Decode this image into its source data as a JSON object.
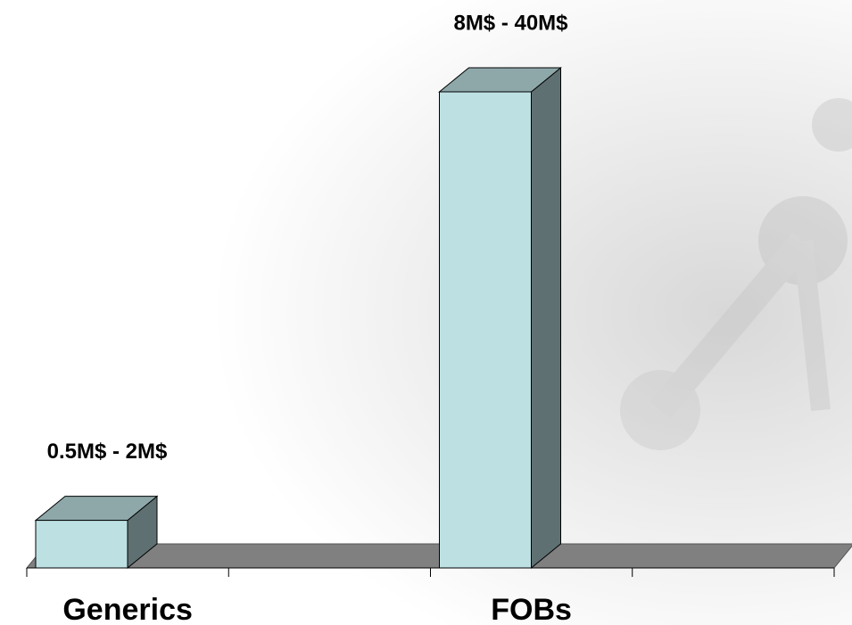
{
  "chart_data": {
    "type": "bar3d",
    "categories": [
      "Generics",
      null,
      "FOBs",
      null
    ],
    "values": [
      4,
      null,
      40,
      null
    ],
    "annotations": [
      "0.5M$ - 2M$",
      null,
      "8M$ - 40M$",
      null
    ],
    "ylim": [
      0,
      40
    ],
    "color": "#bde0e3"
  }
}
